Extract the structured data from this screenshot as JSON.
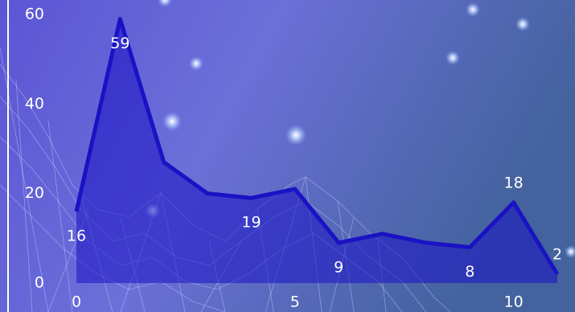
{
  "chart_data": {
    "type": "area",
    "x": [
      0,
      1,
      2,
      3,
      4,
      5,
      6,
      7,
      8,
      9,
      10,
      11
    ],
    "values": [
      16,
      59,
      27,
      20,
      19,
      21,
      9,
      11,
      9,
      8,
      18,
      2
    ],
    "value_labels": [
      "16",
      "59",
      null,
      null,
      "19",
      null,
      "9",
      null,
      null,
      "8",
      "18",
      "2"
    ],
    "color": "#1a12c4",
    "xlim": [
      0,
      11
    ],
    "xticks": [
      0,
      5,
      10
    ],
    "ylim": [
      0,
      60
    ],
    "yticks": [
      0,
      20,
      40,
      60
    ]
  }
}
